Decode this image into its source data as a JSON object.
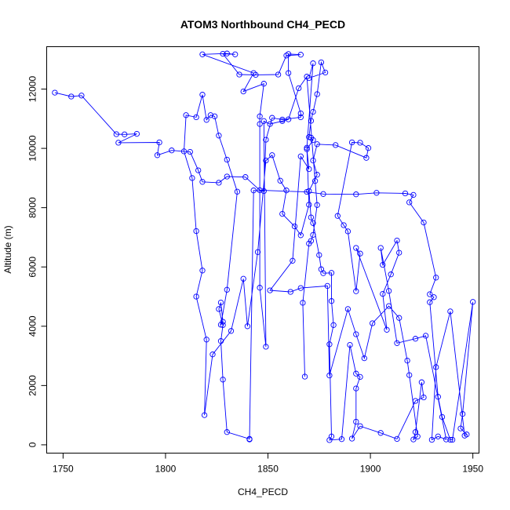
{
  "chart_data": {
    "type": "line",
    "title": "ATOM3 Northbound CH4_PECD",
    "xlabel": "CH4_PECD",
    "ylabel": "Altitude (m)",
    "xlim": [
      1742,
      1953
    ],
    "ylim": [
      -280,
      13430
    ],
    "xticks": [
      1750,
      1800,
      1850,
      1900,
      1950
    ],
    "yticks": [
      0,
      2000,
      4000,
      6000,
      8000,
      10000,
      12000
    ],
    "xtick_labels": [
      "1750",
      "1800",
      "1850",
      "1900",
      "1950"
    ],
    "ytick_labels": [
      "0",
      "2000",
      "4000",
      "6000",
      "8000",
      "10000",
      "12000"
    ],
    "series": [
      {
        "color": "#0000ff",
        "marker": "open-circle",
        "points": [
          [
            1746,
            11880
          ],
          [
            1754,
            11750
          ],
          [
            1759,
            11780
          ],
          [
            1776,
            10480
          ],
          [
            1780,
            10470
          ],
          [
            1786,
            10490
          ],
          [
            1777,
            10190
          ],
          [
            1797,
            10200
          ],
          [
            1796,
            9770
          ],
          [
            1803,
            9930
          ],
          [
            1812,
            9880
          ],
          [
            1816,
            9260
          ],
          [
            1818,
            8870
          ],
          [
            1826,
            8840
          ],
          [
            1830,
            9050
          ],
          [
            1839,
            9030
          ],
          [
            1846,
            8590
          ],
          [
            1869,
            8530
          ],
          [
            1877,
            8460
          ],
          [
            1893,
            8450
          ],
          [
            1903,
            8500
          ],
          [
            1917,
            8480
          ],
          [
            1921,
            8430
          ],
          [
            1919,
            8180
          ],
          [
            1926,
            7500
          ],
          [
            1932,
            5640
          ],
          [
            1929,
            5080
          ],
          [
            1931,
            4980
          ],
          [
            1929,
            4810
          ],
          [
            1933,
            1620
          ],
          [
            1935,
            940
          ],
          [
            1939,
            170
          ],
          [
            1940,
            170
          ],
          [
            1950,
            4820
          ],
          [
            1945,
            1040
          ],
          [
            1944,
            550
          ],
          [
            1947,
            350
          ],
          [
            1946,
            310
          ],
          [
            1939,
            4500
          ],
          [
            1932,
            2620
          ],
          [
            1930,
            170
          ],
          [
            1933,
            280
          ],
          [
            1937,
            180
          ],
          [
            1927,
            3680
          ],
          [
            1922,
            3580
          ],
          [
            1913,
            3430
          ],
          [
            1909,
            5190
          ],
          [
            1905,
            6640
          ],
          [
            1906,
            6070
          ],
          [
            1913,
            6890
          ],
          [
            1914,
            6480
          ],
          [
            1910,
            5750
          ],
          [
            1906,
            5090
          ],
          [
            1908,
            3880
          ],
          [
            1893,
            6640
          ],
          [
            1895,
            6450
          ],
          [
            1893,
            5180
          ],
          [
            1889,
            7200
          ],
          [
            1887,
            7410
          ],
          [
            1884,
            7720
          ],
          [
            1891,
            10200
          ],
          [
            1895,
            10190
          ],
          [
            1899,
            10010
          ],
          [
            1898,
            9680
          ],
          [
            1883,
            10110
          ],
          [
            1874,
            10140
          ],
          [
            1872,
            9590
          ],
          [
            1874,
            9110
          ],
          [
            1870,
            8560
          ],
          [
            1871,
            7670
          ],
          [
            1872,
            7480
          ],
          [
            1875,
            6400
          ],
          [
            1876,
            5920
          ],
          [
            1877,
            5790
          ],
          [
            1881,
            5800
          ],
          [
            1881,
            4850
          ],
          [
            1882,
            4040
          ],
          [
            1880,
            3390
          ],
          [
            1881,
            280
          ],
          [
            1880,
            160
          ],
          [
            1886,
            190
          ],
          [
            1890,
            3370
          ],
          [
            1893,
            2400
          ],
          [
            1895,
            2290
          ],
          [
            1893,
            1900
          ],
          [
            1893,
            780
          ],
          [
            1891,
            210
          ],
          [
            1895,
            630
          ],
          [
            1905,
            400
          ],
          [
            1913,
            200
          ],
          [
            1922,
            1480
          ],
          [
            1926,
            1600
          ],
          [
            1925,
            2110
          ],
          [
            1922,
            430
          ],
          [
            1921,
            180
          ],
          [
            1923,
            280
          ],
          [
            1919,
            2350
          ],
          [
            1918,
            2840
          ],
          [
            1914,
            4280
          ],
          [
            1909,
            4680
          ],
          [
            1901,
            4100
          ],
          [
            1897,
            2920
          ],
          [
            1893,
            3730
          ],
          [
            1889,
            4580
          ],
          [
            1880,
            2340
          ],
          [
            1879,
            5360
          ],
          [
            1866,
            5290
          ],
          [
            1861,
            5160
          ],
          [
            1851,
            5210
          ],
          [
            1862,
            6210
          ],
          [
            1866,
            9730
          ],
          [
            1870,
            9300
          ],
          [
            1869,
            9970
          ],
          [
            1872,
            10280
          ],
          [
            1871,
            10360
          ],
          [
            1870,
            10380
          ],
          [
            1871,
            10930
          ],
          [
            1872,
            11230
          ],
          [
            1874,
            11830
          ],
          [
            1876,
            12900
          ],
          [
            1878,
            12560
          ],
          [
            1870,
            12370
          ],
          [
            1872,
            12870
          ],
          [
            1869,
            10020
          ],
          [
            1870,
            8100
          ],
          [
            1866,
            7070
          ],
          [
            1863,
            7370
          ],
          [
            1857,
            7790
          ],
          [
            1859,
            8580
          ],
          [
            1856,
            8910
          ],
          [
            1852,
            9770
          ],
          [
            1849,
            9590
          ],
          [
            1845,
            6500
          ],
          [
            1840,
            4000
          ],
          [
            1838,
            5600
          ],
          [
            1832,
            3840
          ],
          [
            1823,
            3050
          ],
          [
            1819,
            1000
          ],
          [
            1820,
            3550
          ],
          [
            1815,
            5000
          ],
          [
            1818,
            5880
          ],
          [
            1815,
            7210
          ],
          [
            1813,
            9000
          ],
          [
            1809,
            9900
          ],
          [
            1810,
            11120
          ],
          [
            1815,
            11050
          ],
          [
            1818,
            11810
          ],
          [
            1820,
            10960
          ],
          [
            1822,
            11120
          ],
          [
            1824,
            11080
          ],
          [
            1826,
            10430
          ],
          [
            1830,
            9620
          ],
          [
            1835,
            8540
          ],
          [
            1830,
            5230
          ],
          [
            1827,
            4050
          ],
          [
            1828,
            4150
          ],
          [
            1827,
            4800
          ],
          [
            1826,
            4580
          ],
          [
            1828,
            4040
          ],
          [
            1827,
            3500
          ],
          [
            1828,
            2200
          ],
          [
            1830,
            430
          ],
          [
            1841,
            200
          ],
          [
            1841,
            180
          ],
          [
            1843,
            8580
          ],
          [
            1848,
            8560
          ],
          [
            1849,
            10290
          ],
          [
            1852,
            11030
          ],
          [
            1857,
            10970
          ],
          [
            1866,
            11050
          ],
          [
            1866,
            11180
          ],
          [
            1860,
            12540
          ],
          [
            1860,
            13180
          ],
          [
            1866,
            13160
          ],
          [
            1859,
            13130
          ],
          [
            1855,
            12490
          ],
          [
            1844,
            12480
          ],
          [
            1836,
            12490
          ],
          [
            1828,
            13190
          ],
          [
            1834,
            13170
          ],
          [
            1830,
            13200
          ],
          [
            1818,
            13170
          ],
          [
            1843,
            12540
          ],
          [
            1838,
            11920
          ],
          [
            1848,
            12180
          ],
          [
            1846,
            11080
          ],
          [
            1846,
            10820
          ],
          [
            1846,
            5300
          ],
          [
            1849,
            3310
          ],
          [
            1848,
            10920
          ],
          [
            1851,
            10820
          ],
          [
            1857,
            10920
          ],
          [
            1860,
            10980
          ],
          [
            1865,
            12030
          ],
          [
            1869,
            12420
          ],
          [
            1873,
            8900
          ],
          [
            1874,
            8090
          ],
          [
            1872,
            7080
          ],
          [
            1871,
            6880
          ],
          [
            1870,
            6790
          ],
          [
            1867,
            4790
          ],
          [
            1868,
            2300
          ]
        ]
      }
    ]
  }
}
